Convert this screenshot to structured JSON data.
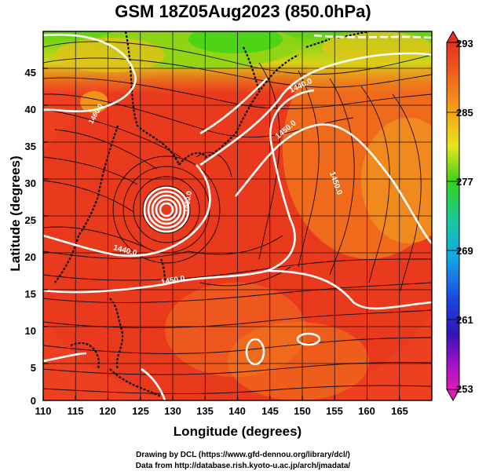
{
  "title": "GSM 18Z05Aug2023 (850.0hPa)",
  "xlabel": "Longitude (degrees)",
  "ylabel": "Latitude  (degrees)",
  "xticks": [
    "110",
    "115",
    "120",
    "125",
    "130",
    "135",
    "140",
    "145",
    "150",
    "155",
    "160",
    "165"
  ],
  "yticks": [
    "45",
    "40",
    "35",
    "30",
    "25",
    "20",
    "15",
    "10",
    "5",
    "0"
  ],
  "colorbar_ticks": [
    "293",
    "285",
    "277",
    "269",
    "261",
    "253"
  ],
  "contour_labels": [
    "1440.0",
    "1450.0",
    "1450.0",
    "1430.0",
    "1440.0",
    "1450.0",
    "1460.0"
  ],
  "credit_dcl": "Drawing by DCL (https://www.gfd-dennou.org/library/dcl/)",
  "credit_data": "Data from http://database.rish.kyoto-u.ac.jp/arch/jmadata/",
  "colors": {
    "warm": "#e9361e",
    "orange": "#f06a1c",
    "yellow": "#f2c017",
    "green": "#52d313",
    "contour": "#ffffff"
  },
  "map": {
    "lon_range": [
      110,
      170
    ],
    "lat_range": [
      0,
      50
    ],
    "typhoon_center": {
      "lon": 128.5,
      "lat": 27.8
    }
  }
}
